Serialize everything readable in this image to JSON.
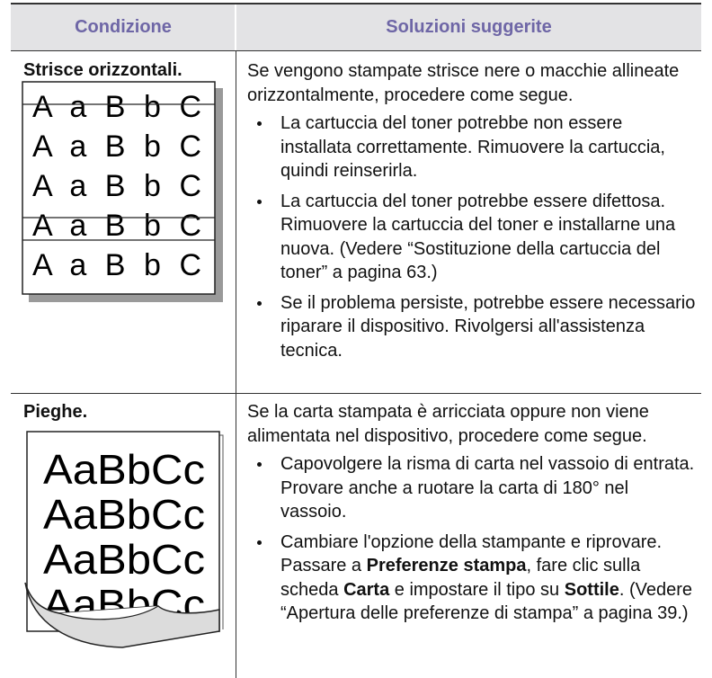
{
  "table": {
    "headers": [
      "Condizione",
      "Soluzioni suggerite"
    ],
    "rows": [
      {
        "condition": "Strisce orizzontali.",
        "illustration": [
          "A a B b C",
          "A a B b C",
          "A a B b C",
          "A a B b C",
          "A a B b C"
        ],
        "intro": "Se vengono stampate strisce nere o macchie allineate orizzontalmente, procedere come segue.",
        "bullets": [
          [
            {
              "text": "La cartuccia del toner potrebbe non essere installata correttamente. Rimuovere la cartuccia, quindi reinserirla."
            }
          ],
          [
            {
              "text": "La cartuccia del toner potrebbe essere difettosa. Rimuovere la cartuccia del toner e installarne una nuova. (Vedere “Sostituzione della cartuccia del toner” a pagina 63.)"
            }
          ],
          [
            {
              "text": "Se il problema persiste, potrebbe essere necessario riparare il dispositivo. Rivolgersi all'assistenza tecnica."
            }
          ]
        ]
      },
      {
        "condition": "Pieghe.",
        "illustration": [
          "AaBbCc",
          "AaBbCc",
          "AaBbCc",
          "AaBbCc"
        ],
        "intro": "Se la carta stampata è arricciata oppure non viene alimentata nel dispositivo, procedere come segue.",
        "bullets": [
          [
            {
              "text": "Capovolgere la risma di carta nel vassoio di entrata. Provare anche a ruotare la carta di 180° nel vassoio."
            }
          ],
          [
            {
              "text": "Cambiare l'opzione della stampante e riprovare. Passare a "
            },
            {
              "text": "Preferenze stampa",
              "bold": true
            },
            {
              "text": ", fare clic sulla scheda "
            },
            {
              "text": "Carta",
              "bold": true
            },
            {
              "text": " e impostare il tipo su "
            },
            {
              "text": "Sottile",
              "bold": true
            },
            {
              "text": ". (Vedere “Apertura delle preferenze di stampa” a pagina 39.)"
            }
          ]
        ]
      }
    ]
  }
}
